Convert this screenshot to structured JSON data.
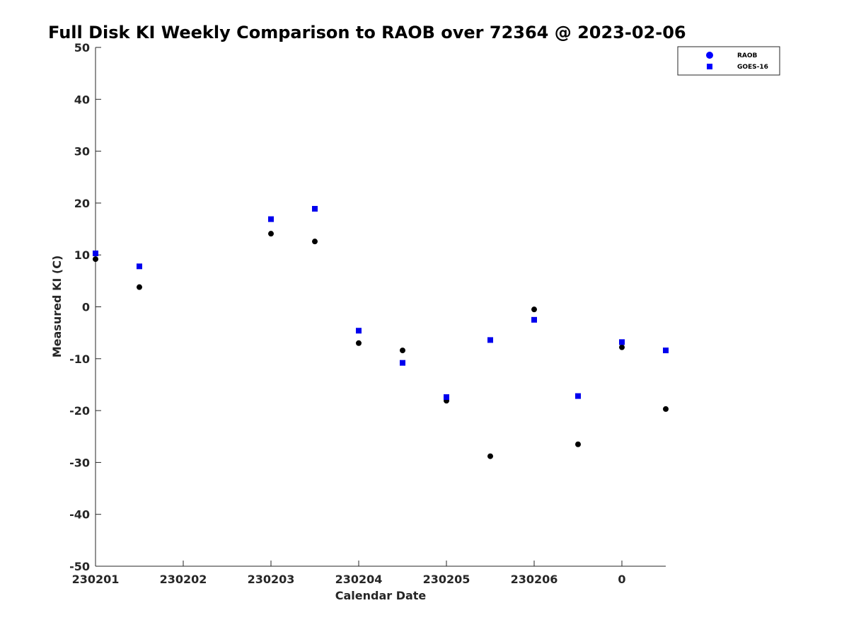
{
  "chart_data": {
    "type": "scatter",
    "title": "Full Disk KI Weekly Comparison to RAOB over 72364 @ 2023-02-06",
    "xlabel": "Calendar Date",
    "ylabel": "Measured KI (C)",
    "x_tick_labels": [
      "230201",
      "230202",
      "230203",
      "230204",
      "230205",
      "230206",
      "0"
    ],
    "y_ticks": [
      50,
      40,
      30,
      20,
      10,
      0,
      -10,
      -20,
      -30,
      -40,
      -50
    ],
    "ylim": [
      -50,
      50
    ],
    "legend_position": "top-right",
    "grid": false,
    "x_index": [
      0,
      1,
      4,
      5,
      6,
      7,
      8,
      9,
      10,
      11,
      12,
      13
    ],
    "series": [
      {
        "name": "RAOB",
        "marker": "circle",
        "legend_color": "#0000ff",
        "marker_color": "#000000",
        "values": [
          9.2,
          3.8,
          14.1,
          12.6,
          -7.0,
          -8.4,
          -18.1,
          -28.8,
          -0.5,
          -26.5,
          -7.8,
          -19.7
        ]
      },
      {
        "name": "GOES-16",
        "marker": "square",
        "legend_color": "#0000ff",
        "marker_color": "#0000ee",
        "values": [
          10.3,
          7.8,
          16.9,
          18.9,
          -4.6,
          -10.8,
          -17.4,
          -6.4,
          -2.5,
          -17.2,
          -6.8,
          -8.4
        ]
      }
    ]
  }
}
